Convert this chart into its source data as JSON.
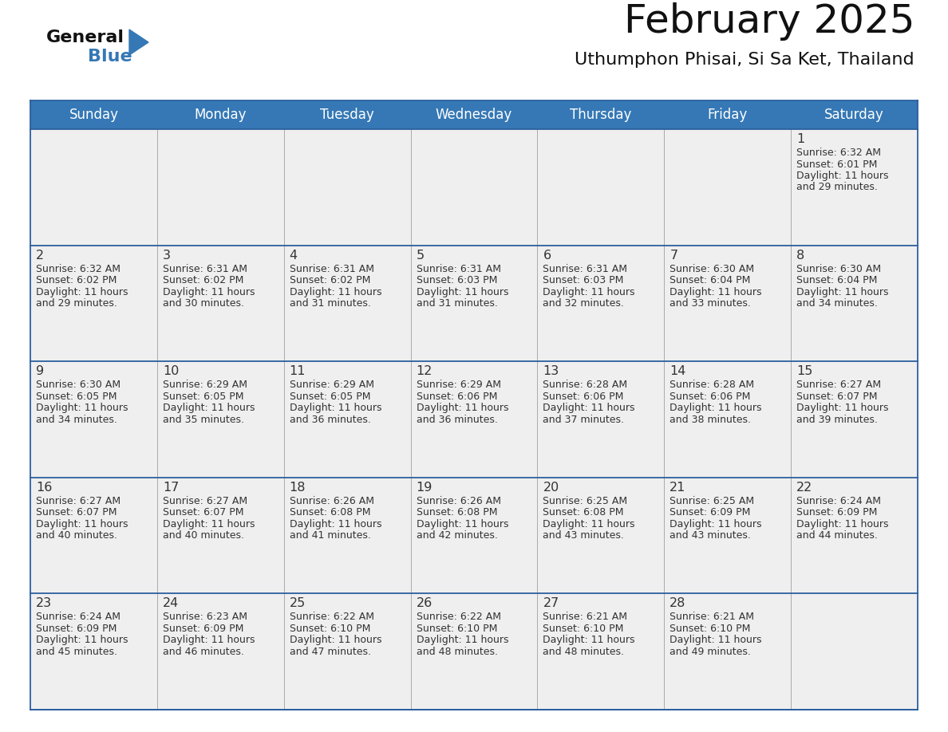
{
  "title": "February 2025",
  "subtitle": "Uthumphon Phisai, Si Sa Ket, Thailand",
  "header_color": "#3578b5",
  "header_text_color": "#ffffff",
  "cell_bg_color": "#f0f0f0",
  "border_color": "#2b5f9e",
  "text_color": "#333333",
  "days_of_week": [
    "Sunday",
    "Monday",
    "Tuesday",
    "Wednesday",
    "Thursday",
    "Friday",
    "Saturday"
  ],
  "calendar_data": [
    [
      null,
      null,
      null,
      null,
      null,
      null,
      {
        "day": 1,
        "sunrise": "6:32 AM",
        "sunset": "6:01 PM",
        "daylight_hours": 11,
        "daylight_minutes": 29
      }
    ],
    [
      {
        "day": 2,
        "sunrise": "6:32 AM",
        "sunset": "6:02 PM",
        "daylight_hours": 11,
        "daylight_minutes": 29
      },
      {
        "day": 3,
        "sunrise": "6:31 AM",
        "sunset": "6:02 PM",
        "daylight_hours": 11,
        "daylight_minutes": 30
      },
      {
        "day": 4,
        "sunrise": "6:31 AM",
        "sunset": "6:02 PM",
        "daylight_hours": 11,
        "daylight_minutes": 31
      },
      {
        "day": 5,
        "sunrise": "6:31 AM",
        "sunset": "6:03 PM",
        "daylight_hours": 11,
        "daylight_minutes": 31
      },
      {
        "day": 6,
        "sunrise": "6:31 AM",
        "sunset": "6:03 PM",
        "daylight_hours": 11,
        "daylight_minutes": 32
      },
      {
        "day": 7,
        "sunrise": "6:30 AM",
        "sunset": "6:04 PM",
        "daylight_hours": 11,
        "daylight_minutes": 33
      },
      {
        "day": 8,
        "sunrise": "6:30 AM",
        "sunset": "6:04 PM",
        "daylight_hours": 11,
        "daylight_minutes": 34
      }
    ],
    [
      {
        "day": 9,
        "sunrise": "6:30 AM",
        "sunset": "6:05 PM",
        "daylight_hours": 11,
        "daylight_minutes": 34
      },
      {
        "day": 10,
        "sunrise": "6:29 AM",
        "sunset": "6:05 PM",
        "daylight_hours": 11,
        "daylight_minutes": 35
      },
      {
        "day": 11,
        "sunrise": "6:29 AM",
        "sunset": "6:05 PM",
        "daylight_hours": 11,
        "daylight_minutes": 36
      },
      {
        "day": 12,
        "sunrise": "6:29 AM",
        "sunset": "6:06 PM",
        "daylight_hours": 11,
        "daylight_minutes": 36
      },
      {
        "day": 13,
        "sunrise": "6:28 AM",
        "sunset": "6:06 PM",
        "daylight_hours": 11,
        "daylight_minutes": 37
      },
      {
        "day": 14,
        "sunrise": "6:28 AM",
        "sunset": "6:06 PM",
        "daylight_hours": 11,
        "daylight_minutes": 38
      },
      {
        "day": 15,
        "sunrise": "6:27 AM",
        "sunset": "6:07 PM",
        "daylight_hours": 11,
        "daylight_minutes": 39
      }
    ],
    [
      {
        "day": 16,
        "sunrise": "6:27 AM",
        "sunset": "6:07 PM",
        "daylight_hours": 11,
        "daylight_minutes": 40
      },
      {
        "day": 17,
        "sunrise": "6:27 AM",
        "sunset": "6:07 PM",
        "daylight_hours": 11,
        "daylight_minutes": 40
      },
      {
        "day": 18,
        "sunrise": "6:26 AM",
        "sunset": "6:08 PM",
        "daylight_hours": 11,
        "daylight_minutes": 41
      },
      {
        "day": 19,
        "sunrise": "6:26 AM",
        "sunset": "6:08 PM",
        "daylight_hours": 11,
        "daylight_minutes": 42
      },
      {
        "day": 20,
        "sunrise": "6:25 AM",
        "sunset": "6:08 PM",
        "daylight_hours": 11,
        "daylight_minutes": 43
      },
      {
        "day": 21,
        "sunrise": "6:25 AM",
        "sunset": "6:09 PM",
        "daylight_hours": 11,
        "daylight_minutes": 43
      },
      {
        "day": 22,
        "sunrise": "6:24 AM",
        "sunset": "6:09 PM",
        "daylight_hours": 11,
        "daylight_minutes": 44
      }
    ],
    [
      {
        "day": 23,
        "sunrise": "6:24 AM",
        "sunset": "6:09 PM",
        "daylight_hours": 11,
        "daylight_minutes": 45
      },
      {
        "day": 24,
        "sunrise": "6:23 AM",
        "sunset": "6:09 PM",
        "daylight_hours": 11,
        "daylight_minutes": 46
      },
      {
        "day": 25,
        "sunrise": "6:22 AM",
        "sunset": "6:10 PM",
        "daylight_hours": 11,
        "daylight_minutes": 47
      },
      {
        "day": 26,
        "sunrise": "6:22 AM",
        "sunset": "6:10 PM",
        "daylight_hours": 11,
        "daylight_minutes": 48
      },
      {
        "day": 27,
        "sunrise": "6:21 AM",
        "sunset": "6:10 PM",
        "daylight_hours": 11,
        "daylight_minutes": 48
      },
      {
        "day": 28,
        "sunrise": "6:21 AM",
        "sunset": "6:10 PM",
        "daylight_hours": 11,
        "daylight_minutes": 49
      },
      null
    ]
  ],
  "figsize": [
    11.88,
    9.18
  ],
  "dpi": 100
}
